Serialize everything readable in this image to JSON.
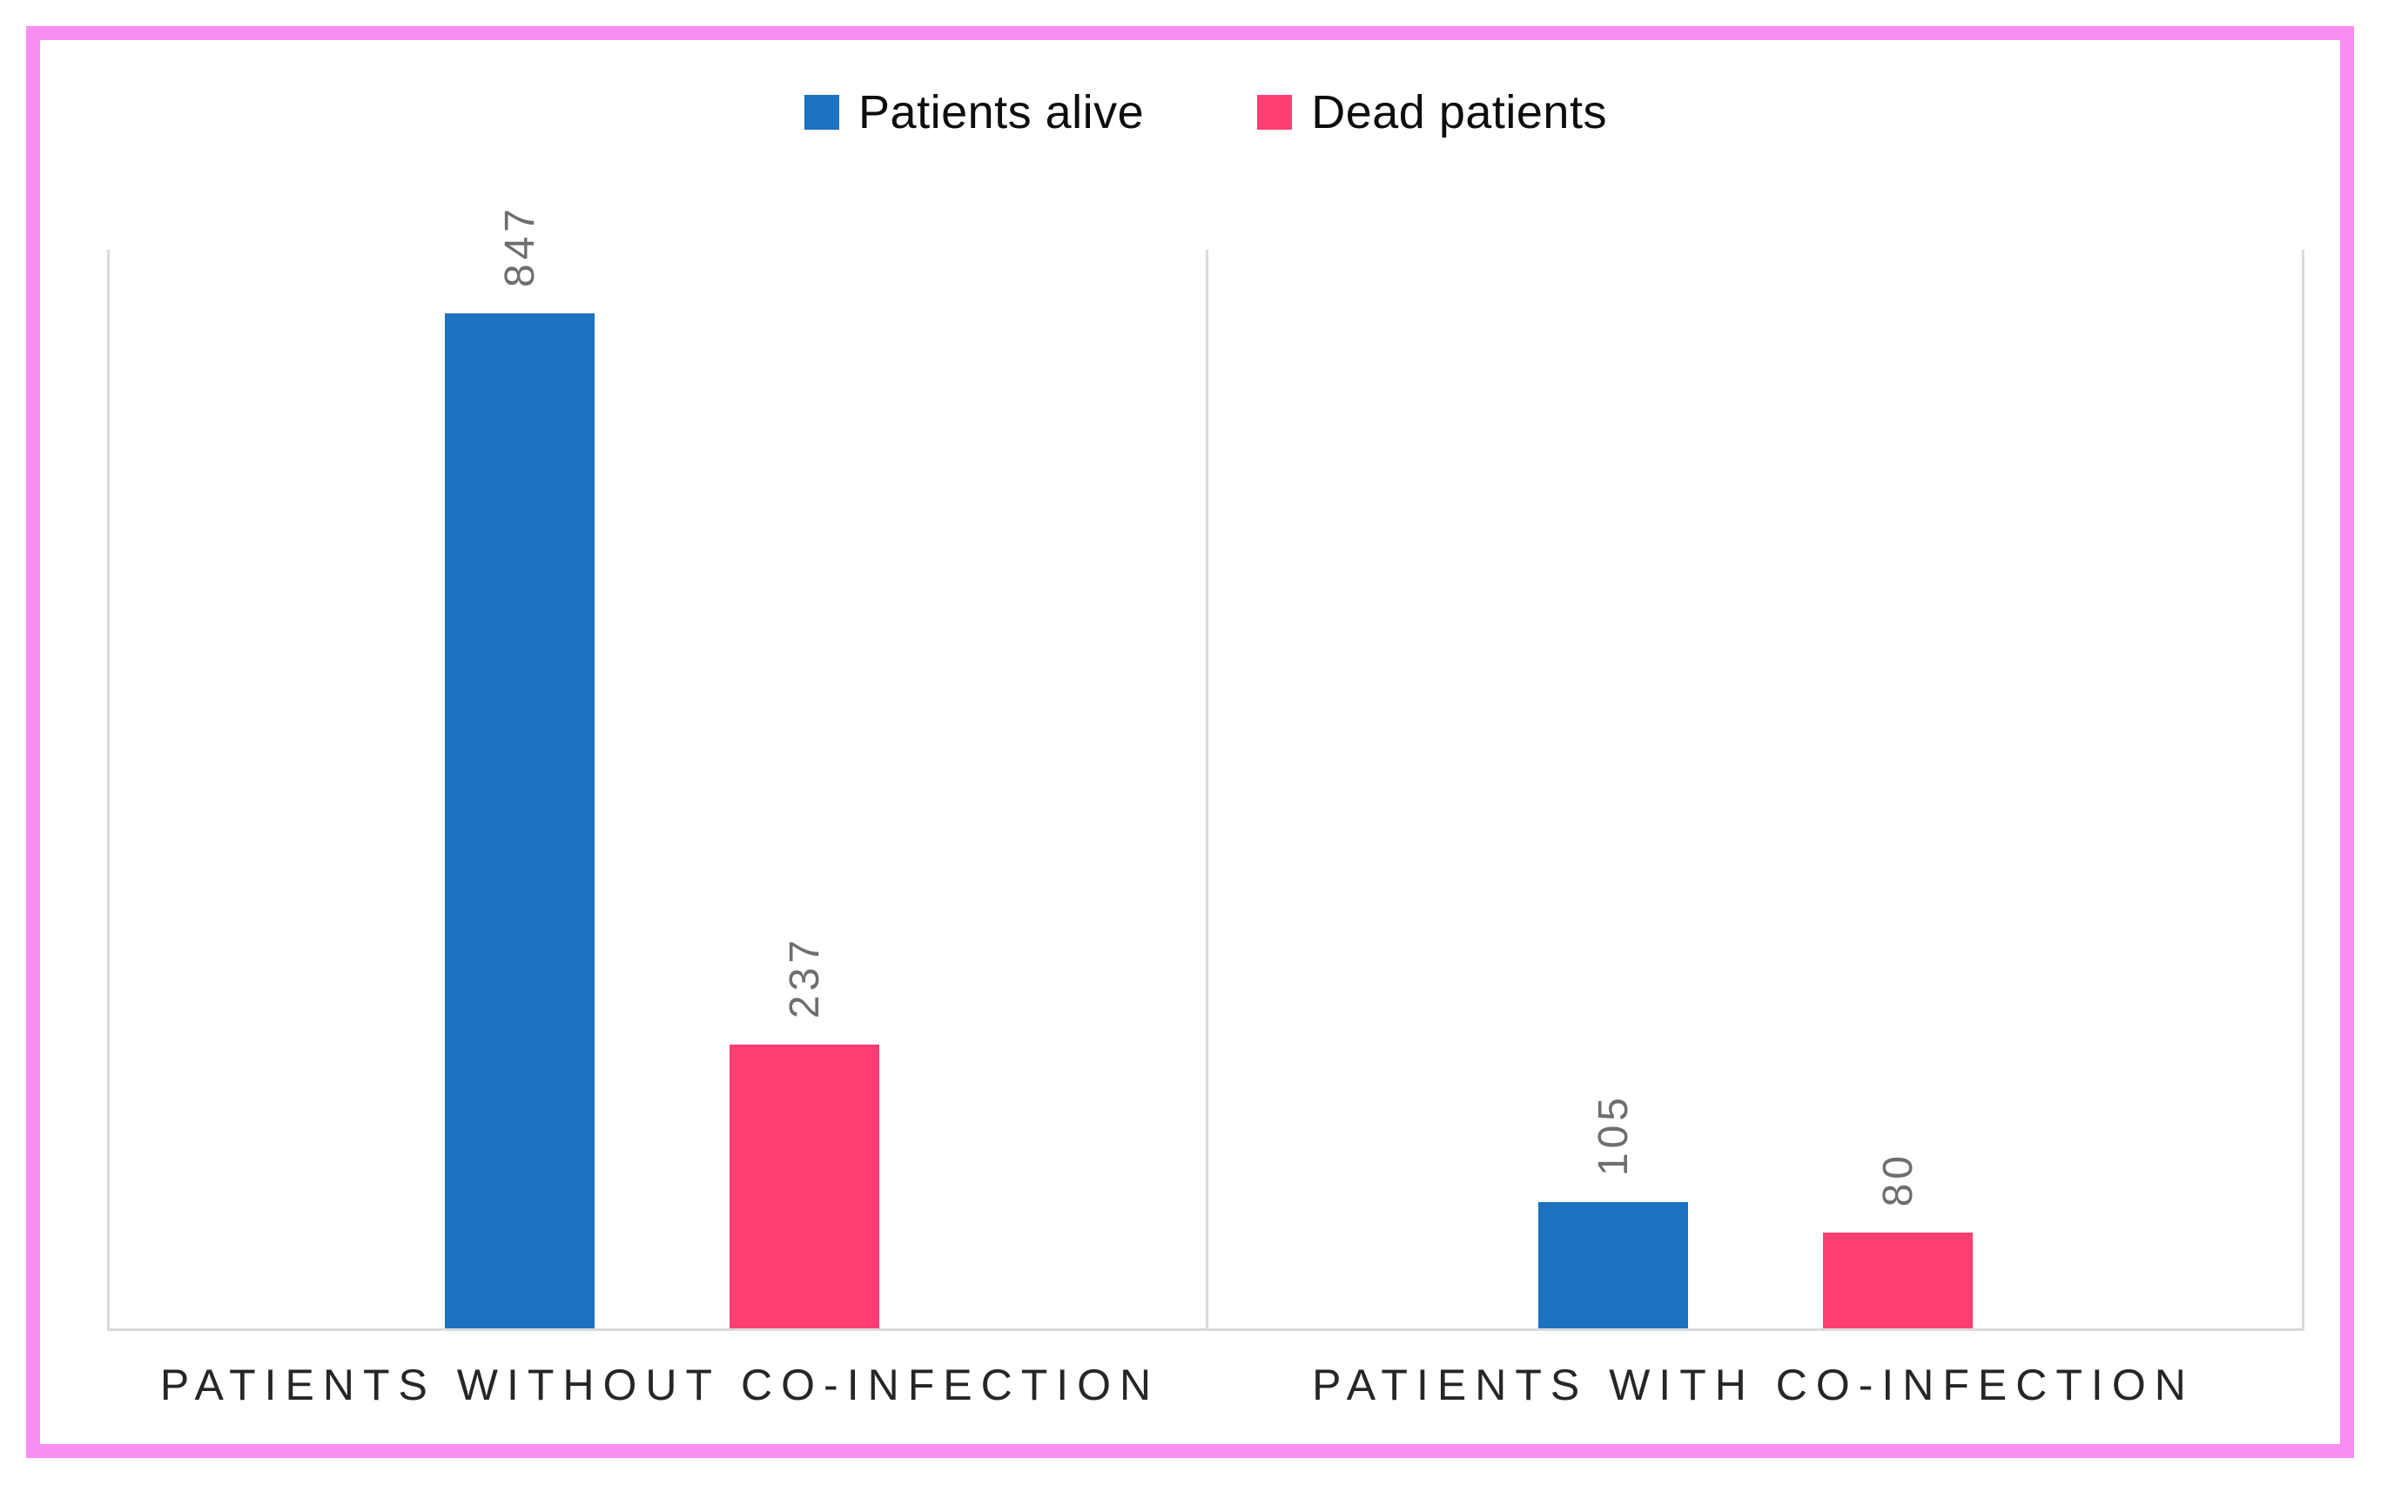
{
  "figure": {
    "border_color": "#fa8df2",
    "background": "#ffffff"
  },
  "chart_data": {
    "type": "bar",
    "title": "",
    "xlabel": "",
    "ylabel": "",
    "categories": [
      "PATIENTS WITHOUT CO-INFECTION",
      "PATIENTS WITH CO-INFECTION"
    ],
    "series": [
      {
        "name": "Patients alive",
        "color": "#1d72c2",
        "values": [
          847,
          105
        ]
      },
      {
        "name": "Dead patients",
        "color": "#fd3e72",
        "values": [
          237,
          80
        ]
      }
    ],
    "ylim": [
      0,
      900
    ],
    "y_axis_visible": false,
    "grid": "category-divider-lines-only",
    "gridline_color": "#d9d9d9",
    "legend_position": "top-center",
    "data_labels": {
      "visible": true,
      "rotation": 270,
      "color": "#6e6e6e"
    }
  }
}
